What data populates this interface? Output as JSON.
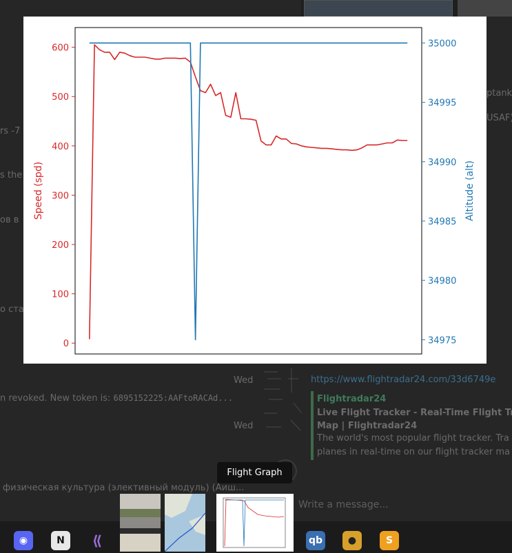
{
  "viewer": {
    "tooltip": "Flight Graph"
  },
  "background": {
    "left_fragments": [
      "rs -7",
      "s the",
      "ов в",
      "о ста"
    ],
    "right_fragments": [
      "ptank",
      "USAF)"
    ],
    "day_label_1": "Wed",
    "day_label_2": "Wed",
    "link": "https://www.flightradar24.com/33d6749e",
    "token_line": "n revoked. New token is:",
    "token_value": "6895152225:AAFtoRACAd...",
    "preview_site": "Flightradar24",
    "preview_title_1": "Live Flight Tracker - Real-Time Flight Track",
    "preview_title_2": "Map | Flightradar24",
    "preview_desc_1": "The world's most popular flight tracker. Tra",
    "preview_desc_2": "planes in real-time on our flight tracker ma",
    "course_line": "физическая культура (элективный модуль) (Аиш...",
    "message_placeholder": "Write a message..."
  },
  "colors": {
    "speed": "#d62728",
    "altitude": "#1f77b4",
    "background": "#262626"
  },
  "chart_data": {
    "type": "line",
    "title": "",
    "xlabel": "",
    "x_ticks_shown": false,
    "left_axis": {
      "label": "Speed (spd)",
      "ylim": [
        -22,
        640
      ],
      "ticks": [
        0,
        100,
        200,
        300,
        400,
        500,
        600
      ],
      "color": "#d62728"
    },
    "right_axis": {
      "label": "Altitude (alt)",
      "ylim": [
        34973.8,
        35001.3
      ],
      "ticks": [
        34975,
        34980,
        34985,
        34990,
        34995,
        35000
      ],
      "color": "#1f77b4"
    },
    "x": [
      0,
      1,
      2,
      3,
      4,
      5,
      6,
      7,
      8,
      9,
      10,
      11,
      12,
      13,
      14,
      15,
      16,
      17,
      18,
      19,
      20,
      21,
      22,
      23,
      24,
      25,
      26,
      27,
      28,
      29,
      30,
      31,
      32,
      33,
      34,
      35,
      36,
      37,
      38,
      39,
      40,
      41,
      42,
      43,
      44,
      45,
      46,
      47,
      48,
      49,
      50,
      51,
      52,
      53,
      54,
      55,
      56,
      57,
      58,
      59,
      60,
      61,
      62,
      63
    ],
    "series": [
      {
        "name": "spd",
        "axis": "left",
        "values": [
          8,
          605,
          595,
          590,
          590,
          575,
          590,
          588,
          583,
          580,
          580,
          580,
          578,
          576,
          576,
          578,
          578,
          578,
          577,
          578,
          570,
          540,
          512,
          508,
          525,
          502,
          508,
          462,
          458,
          508,
          455,
          455,
          454,
          452,
          410,
          402,
          402,
          420,
          414,
          414,
          405,
          404,
          400,
          398,
          397,
          396,
          395,
          395,
          394,
          393,
          392,
          392,
          391,
          392,
          396,
          402,
          402,
          402,
          404,
          406,
          406,
          412,
          411,
          411
        ],
        "color": "#d62728"
      },
      {
        "name": "alt",
        "axis": "right",
        "values": [
          35000,
          35000,
          35000,
          35000,
          35000,
          35000,
          35000,
          35000,
          35000,
          35000,
          35000,
          35000,
          35000,
          35000,
          35000,
          35000,
          35000,
          35000,
          35000,
          35000,
          35000,
          34975,
          35000,
          35000,
          35000,
          35000,
          35000,
          35000,
          35000,
          35000,
          35000,
          35000,
          35000,
          35000,
          35000,
          35000,
          35000,
          35000,
          35000,
          35000,
          35000,
          35000,
          35000,
          35000,
          35000,
          35000,
          35000,
          35000,
          35000,
          35000,
          35000,
          35000,
          35000,
          35000,
          35000,
          35000,
          35000,
          35000,
          35000,
          35000,
          35000,
          35000,
          35000,
          35000
        ],
        "color": "#1f77b4"
      }
    ]
  }
}
